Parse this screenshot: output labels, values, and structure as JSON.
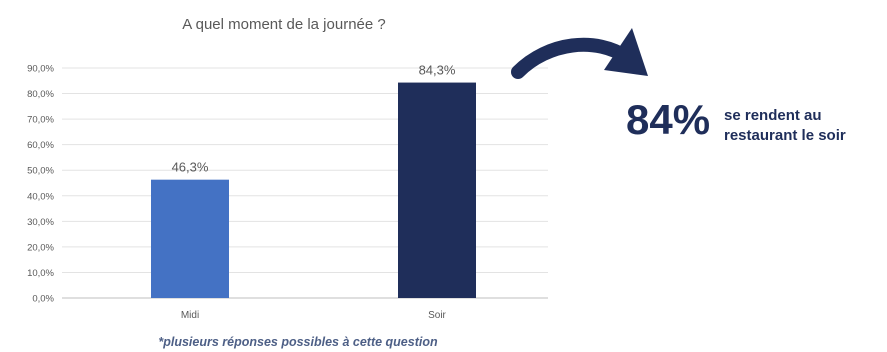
{
  "chart_data": {
    "type": "bar",
    "title": "A quel moment de la journée ?",
    "categories": [
      "Midi",
      "Soir"
    ],
    "values": [
      46.3,
      84.3
    ],
    "value_labels": [
      "46,3%",
      "84,3%"
    ],
    "ylim": [
      0,
      90
    ],
    "yticks": [
      "0,0%",
      "10,0%",
      "20,0%",
      "30,0%",
      "40,0%",
      "50,0%",
      "60,0%",
      "70,0%",
      "80,0%",
      "90,0%"
    ],
    "grid": true,
    "colors": [
      "#4472c4",
      "#1f2e5a"
    ],
    "footnote": "*plusieurs réponses possibles à cette question"
  },
  "callout": {
    "value": "84%",
    "line1": "se rendent au",
    "line2": "restaurant le soir",
    "color": "#1f2e5a"
  }
}
